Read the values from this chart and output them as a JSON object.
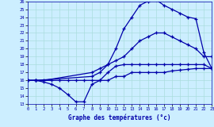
{
  "bg_color": "#cceeff",
  "line_color": "#0000aa",
  "grid_color": "#aadddd",
  "xlabel": "Graphe des températures (°c)",
  "ylabel_ticks": [
    13,
    14,
    15,
    16,
    17,
    18,
    19,
    20,
    21,
    22,
    23,
    24,
    25,
    26
  ],
  "xlabel_ticks": [
    0,
    1,
    2,
    3,
    4,
    5,
    6,
    7,
    8,
    9,
    10,
    11,
    12,
    13,
    14,
    15,
    16,
    17,
    18,
    19,
    20,
    21,
    22,
    23
  ],
  "xlim": [
    0,
    23
  ],
  "ylim": [
    13,
    26
  ],
  "curves": [
    {
      "x": [
        0,
        1,
        3,
        4,
        5,
        6,
        7,
        8,
        9,
        10,
        11,
        12,
        13,
        14,
        15,
        16,
        17,
        18,
        19,
        20,
        21,
        22,
        23
      ],
      "y": [
        16,
        16,
        16,
        16,
        16,
        16,
        16,
        16,
        16,
        16,
        16.5,
        16.5,
        17,
        17,
        17,
        17,
        17,
        17.2,
        17.3,
        17.4,
        17.5,
        17.5,
        17.5
      ]
    },
    {
      "x": [
        0,
        1,
        2,
        3,
        4,
        5,
        6,
        7,
        8,
        9,
        10,
        11,
        12,
        13,
        14,
        15,
        16,
        17,
        18,
        19,
        20,
        21,
        22,
        23
      ],
      "y": [
        16,
        16,
        15.8,
        15.5,
        15,
        14.2,
        13.3,
        13.3,
        15.5,
        16,
        17,
        17.8,
        18,
        18,
        18,
        18,
        18,
        18,
        18,
        18,
        18,
        18,
        18,
        17.5
      ]
    },
    {
      "x": [
        0,
        1,
        2,
        8,
        9,
        10,
        11,
        12,
        13,
        14,
        15,
        16,
        17,
        18,
        19,
        20,
        21,
        22,
        23
      ],
      "y": [
        16,
        16,
        16,
        17,
        17.5,
        18,
        18.5,
        19,
        20,
        21,
        21.5,
        22,
        22,
        21.5,
        21,
        20.5,
        20,
        19,
        19
      ]
    },
    {
      "x": [
        0,
        1,
        8,
        9,
        10,
        11,
        12,
        13,
        14,
        15,
        16,
        17,
        18,
        19,
        20,
        21,
        22,
        23
      ],
      "y": [
        16,
        16,
        16.5,
        17,
        18,
        20,
        22.5,
        24,
        25.5,
        26,
        26.2,
        25.5,
        25,
        24.5,
        24,
        23.8,
        19.5,
        17.5
      ]
    }
  ]
}
